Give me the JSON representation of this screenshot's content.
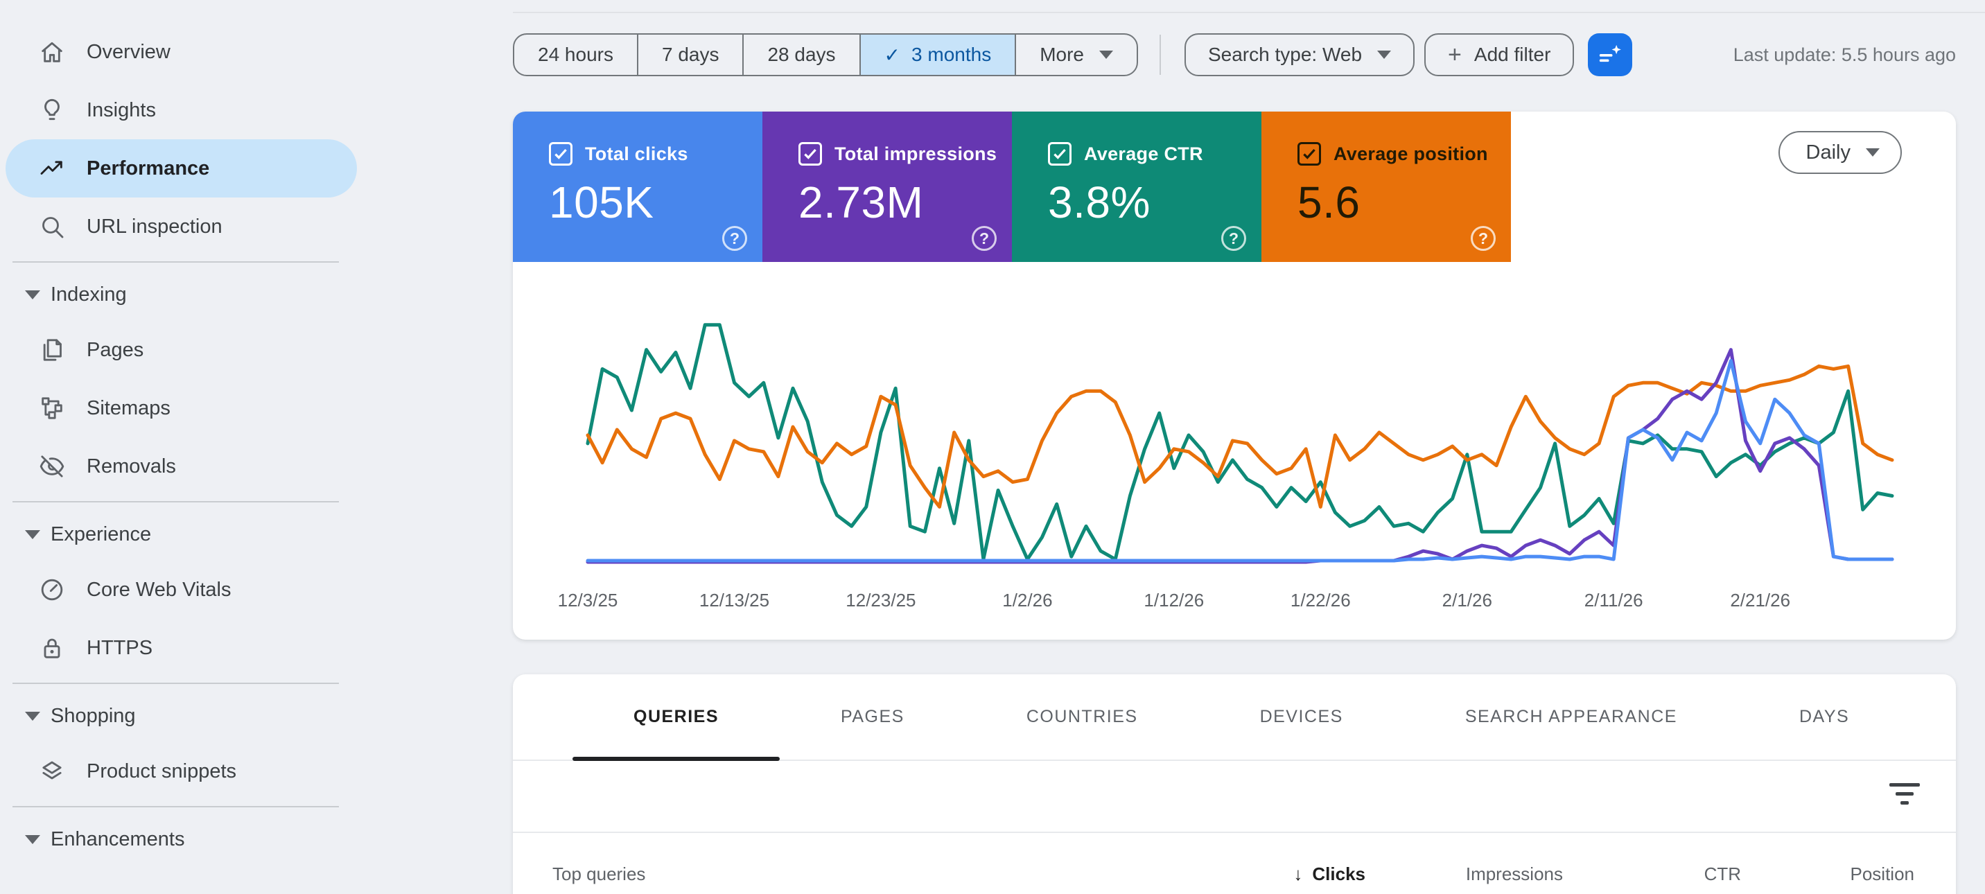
{
  "sidebar": {
    "items": [
      {
        "label": "Overview",
        "icon": "home-icon",
        "active": false
      },
      {
        "label": "Insights",
        "icon": "lightbulb-icon",
        "active": false
      },
      {
        "label": "Performance",
        "icon": "trending-up-icon",
        "active": true
      },
      {
        "label": "URL inspection",
        "icon": "search-icon",
        "active": false
      }
    ],
    "groups": [
      {
        "label": "Indexing",
        "items": [
          {
            "label": "Pages",
            "icon": "pages-icon"
          },
          {
            "label": "Sitemaps",
            "icon": "sitemap-icon"
          },
          {
            "label": "Removals",
            "icon": "eye-off-icon"
          }
        ]
      },
      {
        "label": "Experience",
        "items": [
          {
            "label": "Core Web Vitals",
            "icon": "speedometer-icon"
          },
          {
            "label": "HTTPS",
            "icon": "lock-icon"
          }
        ]
      },
      {
        "label": "Shopping",
        "items": [
          {
            "label": "Product snippets",
            "icon": "layers-icon"
          }
        ]
      },
      {
        "label": "Enhancements",
        "items": []
      }
    ]
  },
  "filter_bar": {
    "date_ranges": [
      {
        "label": "24 hours",
        "selected": false
      },
      {
        "label": "7 days",
        "selected": false
      },
      {
        "label": "28 days",
        "selected": false
      },
      {
        "label": "3 months",
        "selected": true
      }
    ],
    "more_label": "More",
    "search_type": "Search type: Web",
    "add_filter": "Add filter",
    "last_update": "Last update: 5.5 hours ago"
  },
  "metric_cards": [
    {
      "label": "Total clicks",
      "value": "105K",
      "color": "#4886ec",
      "dark_text": false,
      "checked": true
    },
    {
      "label": "Total impressions",
      "value": "2.73M",
      "color": "#6637b1",
      "dark_text": false,
      "checked": true
    },
    {
      "label": "Average CTR",
      "value": "3.8%",
      "color": "#0e8a76",
      "dark_text": false,
      "checked": true
    },
    {
      "label": "Average position",
      "value": "5.6",
      "color": "#e8710a",
      "dark_text": true,
      "checked": true
    }
  ],
  "chart": {
    "interval_label": "Daily"
  },
  "chart_data": {
    "type": "line",
    "granularity": "Daily",
    "days": 90,
    "x_ticks": [
      "12/3/25",
      "12/13/25",
      "12/23/25",
      "1/2/26",
      "1/12/26",
      "1/22/26",
      "2/1/26",
      "2/11/26",
      "2/21/26"
    ],
    "x_tick_day_index": [
      0,
      10,
      20,
      30,
      40,
      50,
      60,
      70,
      80
    ],
    "y_units": "percent of plot height (no y-axis shown; each series normalized to its own scale)",
    "totals": {
      "clicks": "105K",
      "impressions": "2.73M",
      "ctr": "3.8%",
      "position": "5.6"
    },
    "series": [
      {
        "name": "CTR",
        "color": "#0f8a78",
        "values": [
          44,
          71,
          68,
          56,
          78,
          70,
          77,
          64,
          87,
          87,
          66,
          61,
          66,
          46,
          64,
          52,
          30,
          18,
          14,
          21,
          48,
          64,
          14,
          12,
          35,
          15,
          45,
          2,
          27,
          14,
          2,
          10,
          22,
          3,
          14,
          5,
          2,
          25,
          42,
          55,
          35,
          47,
          41,
          30,
          38,
          31,
          28,
          21,
          28,
          23,
          30,
          19,
          14,
          16,
          21,
          14,
          15,
          12,
          19,
          24,
          40,
          12,
          12,
          12,
          20,
          28,
          44,
          14,
          18,
          24,
          15,
          45,
          44,
          47,
          42,
          42,
          41,
          32,
          37,
          40,
          36,
          41,
          44,
          46,
          44,
          48,
          63,
          20,
          26,
          25
        ]
      },
      {
        "name": "Position",
        "color": "#e8710a",
        "values": [
          47,
          37,
          49,
          42,
          39,
          53,
          55,
          53,
          40,
          31,
          45,
          42,
          41,
          32,
          50,
          41,
          37,
          44,
          40,
          43,
          61,
          58,
          36,
          28,
          21,
          48,
          38,
          32,
          34,
          30,
          31,
          45,
          55,
          61,
          63,
          63,
          59,
          47,
          30,
          35,
          42,
          41,
          37,
          32,
          45,
          44,
          38,
          33,
          35,
          42,
          21,
          47,
          38,
          42,
          48,
          44,
          40,
          38,
          40,
          43,
          38,
          40,
          36,
          50,
          61,
          52,
          46,
          42,
          40,
          44,
          61,
          65,
          66,
          66,
          64,
          62,
          66,
          65,
          63,
          63,
          65,
          66,
          67,
          69,
          72,
          71,
          72,
          44,
          40,
          38
        ]
      },
      {
        "name": "Impressions",
        "color": "#6640c0",
        "values": [
          1,
          1,
          1,
          1,
          1,
          1,
          1,
          1,
          1,
          1,
          1,
          1,
          1,
          1,
          1,
          1,
          1,
          1,
          1,
          1,
          1,
          1,
          1,
          1,
          1,
          1,
          1,
          1,
          1,
          1,
          1,
          1,
          1,
          1,
          1,
          1,
          1,
          1,
          1,
          1,
          1,
          1,
          1,
          1,
          1,
          1,
          1,
          1,
          1,
          1,
          1.5,
          1.5,
          1.5,
          1.5,
          1.5,
          1.5,
          3,
          5,
          4,
          2,
          5,
          7,
          6,
          3,
          7,
          9,
          7,
          4,
          9,
          12,
          7,
          46,
          49,
          53,
          60,
          63,
          60,
          66,
          78,
          45,
          34,
          44,
          46,
          42,
          36,
          3,
          2,
          2,
          2,
          2
        ]
      },
      {
        "name": "Clicks",
        "color": "#4d8cf5",
        "values": [
          1.5,
          1.5,
          1.5,
          1.5,
          1.5,
          1.5,
          1.5,
          1.5,
          1.5,
          1.5,
          1.5,
          1.5,
          1.5,
          1.5,
          1.5,
          1.5,
          1.5,
          1.5,
          1.5,
          1.5,
          1.5,
          1.5,
          1.5,
          1.5,
          1.5,
          1.5,
          1.5,
          1.5,
          1.5,
          1.5,
          1.5,
          1.5,
          1.5,
          1.5,
          1.5,
          1.5,
          1.5,
          1.5,
          1.5,
          1.5,
          1.5,
          1.5,
          1.5,
          1.5,
          1.5,
          1.5,
          1.5,
          1.5,
          1.5,
          1.5,
          1.5,
          1.5,
          1.5,
          1.5,
          1.5,
          1.5,
          2,
          2,
          2.5,
          2,
          2.5,
          3,
          2.5,
          2,
          3,
          3,
          2.5,
          2,
          3,
          3,
          2,
          46,
          49,
          46,
          38,
          48,
          45,
          55,
          74,
          52,
          44,
          60,
          55,
          47,
          44,
          3,
          2,
          2,
          2,
          2
        ]
      }
    ]
  },
  "tabs": [
    {
      "label": "QUERIES",
      "active": true
    },
    {
      "label": "PAGES",
      "active": false
    },
    {
      "label": "COUNTRIES",
      "active": false
    },
    {
      "label": "DEVICES",
      "active": false
    },
    {
      "label": "SEARCH APPEARANCE",
      "active": false
    },
    {
      "label": "DAYS",
      "active": false
    }
  ],
  "table": {
    "row_header": "Top queries",
    "columns": [
      {
        "label": "Clicks",
        "sorted": true,
        "sort_dir": "desc"
      },
      {
        "label": "Impressions",
        "sorted": false
      },
      {
        "label": "CTR",
        "sorted": false
      },
      {
        "label": "Position",
        "sorted": false
      }
    ]
  }
}
